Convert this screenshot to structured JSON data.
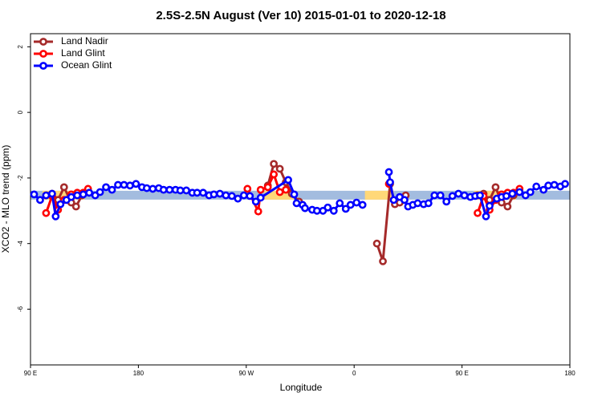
{
  "chart_data": {
    "type": "line",
    "title": "2.5S-2.5N August (Ver 10)   2015-01-01 to 2020-12-18",
    "x_label": "Longitude",
    "y_label": "XCO2 - MLO trend (ppm)",
    "xlim": [
      90,
      540
    ],
    "ylim": [
      -7.7,
      2.4
    ],
    "xticks": [
      {
        "value": 90,
        "label": "90 E"
      },
      180,
      {
        "value": 270,
        "label": "90 W"
      },
      {
        "value": 360,
        "label": "0"
      },
      {
        "value": 450,
        "label": "90 E"
      },
      {
        "value": 540,
        "label": "180"
      }
    ],
    "yticks": [
      -6,
      -4,
      -2,
      0,
      2
    ],
    "legend": "top-left",
    "bands": [
      {
        "color": "#a3bcdf",
        "x": [
          90,
          540
        ],
        "y": [
          -2.66,
          -2.39
        ]
      },
      {
        "color": "#ffd878",
        "x": [
          100,
          135
        ],
        "y": [
          -2.66,
          -2.39
        ]
      },
      {
        "color": "#ffd878",
        "x": [
          285,
          312
        ],
        "y": [
          -2.66,
          -2.39
        ]
      },
      {
        "color": "#ffd878",
        "x": [
          369,
          393
        ],
        "y": [
          -2.66,
          -2.39
        ]
      },
      {
        "color": "#ffd878",
        "x": [
          460,
          495
        ],
        "y": [
          -2.66,
          -2.39
        ]
      }
    ],
    "series": [
      {
        "name": "Land Nadir",
        "color": "#a52a2a",
        "x": [
          103,
          108,
          113,
          118,
          124,
          128,
          133,
          200,
          288,
          293,
          298,
          303,
          308,
          314,
          340,
          379,
          384,
          390,
          394,
          398,
          403,
          430,
          463,
          468,
          473,
          478,
          483,
          488,
          493
        ],
        "values": [
          -2.53,
          -2.48,
          -2.67,
          -2.28,
          -2.75,
          -2.87,
          -2.53,
          null,
          -2.23,
          -1.57,
          -1.72,
          -2.13,
          -2.48,
          -2.72,
          null,
          -4.0,
          -4.54,
          -2.18,
          -2.8,
          -2.75,
          -2.53,
          null,
          -2.53,
          -2.48,
          -2.67,
          -2.28,
          -2.75,
          -2.87,
          -2.53
        ]
      },
      {
        "name": "Land Glint",
        "color": "#ff0000",
        "x": [
          103,
          108,
          113,
          118,
          124,
          129,
          134,
          138,
          200,
          271,
          280,
          282,
          288,
          293,
          298,
          303,
          340,
          389,
          420,
          463,
          468,
          473,
          478,
          483,
          488,
          493,
          498
        ],
        "values": [
          -3.07,
          -2.55,
          -2.97,
          -2.67,
          -2.5,
          -2.45,
          -2.45,
          -2.33,
          null,
          -2.33,
          -3.02,
          -2.36,
          -2.28,
          -1.89,
          -2.43,
          -2.36,
          null,
          -2.18,
          null,
          -3.07,
          -2.55,
          -2.97,
          -2.67,
          -2.5,
          -2.45,
          -2.45,
          -2.33
        ]
      },
      {
        "name": "Ocean Glint",
        "color": "#0000ff",
        "x": [
          93,
          98,
          103,
          108,
          111,
          115,
          120,
          124,
          129,
          134,
          139,
          144,
          148,
          153,
          158,
          163,
          168,
          173,
          178,
          183,
          187,
          192,
          197,
          201,
          206,
          211,
          215,
          220,
          225,
          229,
          234,
          239,
          243,
          248,
          253,
          258,
          263,
          268,
          273,
          278,
          282,
          305,
          310,
          312,
          317,
          319,
          325,
          329,
          334,
          338,
          343,
          348,
          353,
          357,
          362,
          367,
          378,
          389,
          390,
          393,
          398,
          402,
          405,
          409,
          413,
          418,
          422,
          427,
          432,
          437,
          442,
          447,
          452,
          457,
          461,
          465,
          470,
          473,
          479,
          483,
          487,
          492,
          498,
          503,
          507,
          512,
          518,
          522,
          527,
          532,
          536
        ],
        "values": [
          -2.5,
          -2.67,
          -2.53,
          -2.48,
          -3.17,
          -2.8,
          -2.67,
          -2.58,
          -2.53,
          -2.5,
          -2.45,
          -2.53,
          -2.43,
          -2.28,
          -2.36,
          -2.21,
          -2.21,
          -2.23,
          -2.18,
          -2.28,
          -2.31,
          -2.33,
          -2.31,
          -2.36,
          -2.36,
          -2.36,
          -2.38,
          -2.38,
          -2.45,
          -2.45,
          -2.45,
          -2.53,
          -2.5,
          -2.48,
          -2.53,
          -2.55,
          -2.63,
          -2.53,
          -2.55,
          -2.72,
          -2.6,
          -2.06,
          -2.5,
          -2.77,
          -2.82,
          -2.92,
          -2.97,
          -3.0,
          -3.0,
          -2.9,
          -3.0,
          -2.77,
          -2.94,
          -2.82,
          -2.75,
          -2.82,
          null,
          -1.82,
          -2.13,
          -2.67,
          -2.58,
          -2.67,
          -2.87,
          -2.82,
          -2.77,
          -2.8,
          -2.77,
          -2.53,
          -2.53,
          -2.72,
          -2.55,
          -2.48,
          -2.53,
          -2.58,
          -2.55,
          -2.53,
          -3.17,
          -2.85,
          -2.63,
          -2.58,
          -2.55,
          -2.48,
          -2.43,
          -2.53,
          -2.43,
          -2.26,
          -2.36,
          -2.23,
          -2.21,
          -2.26,
          -2.18
        ]
      }
    ]
  }
}
